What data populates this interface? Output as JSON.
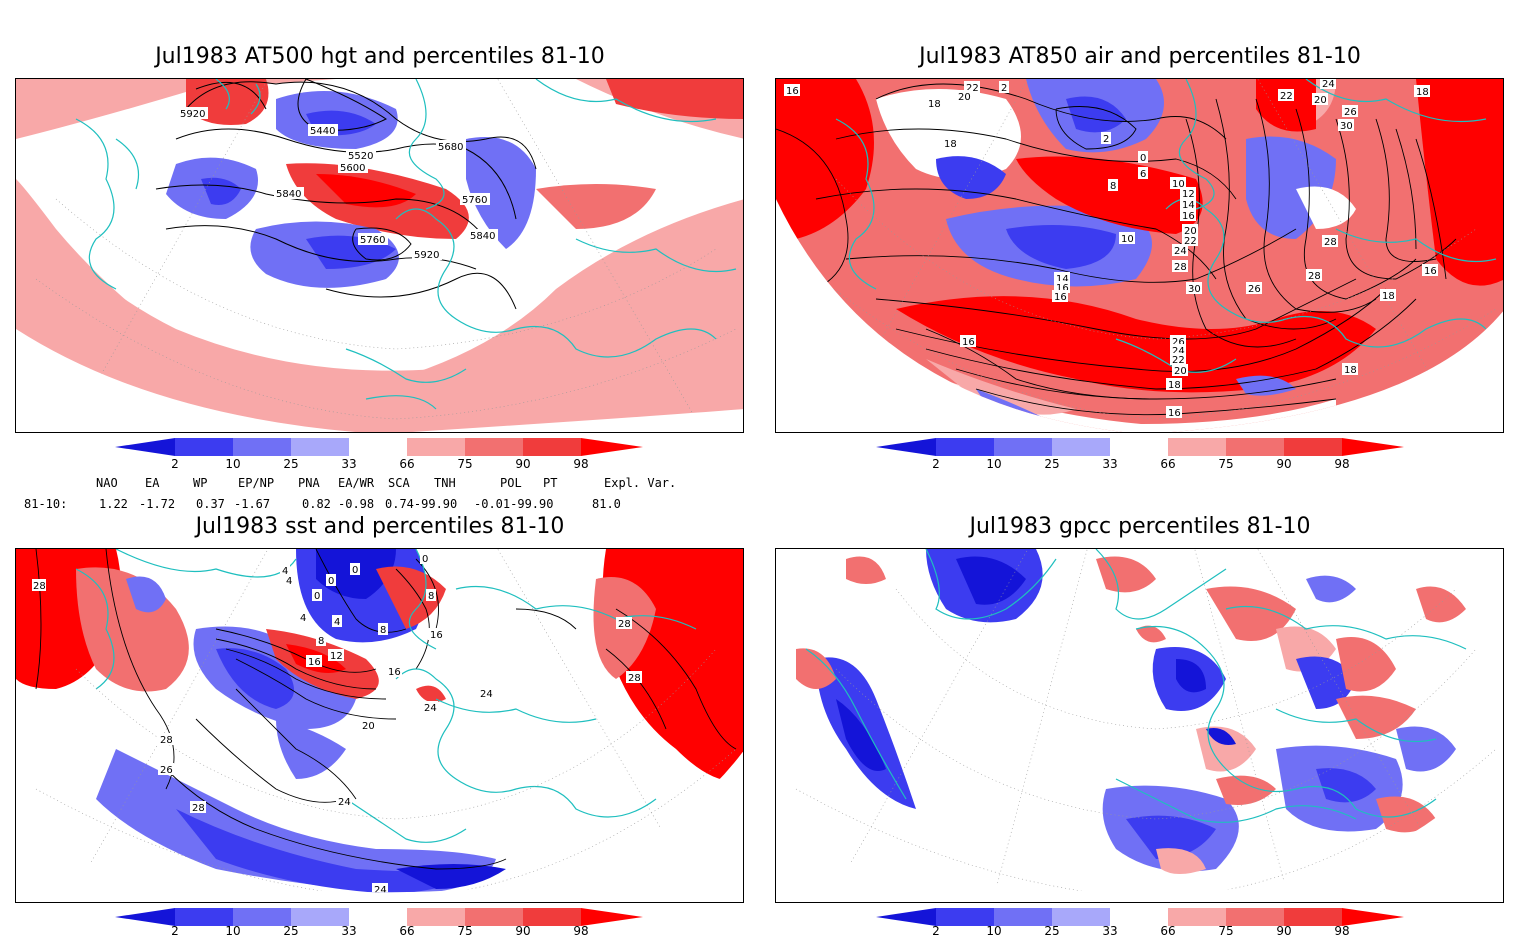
{
  "panels": [
    {
      "title": "Jul1983 AT500 hgt and percentiles 81-10",
      "contour_labels": [
        "5920",
        "5440",
        "5520",
        "5600",
        "5680",
        "5840",
        "5760",
        "5760",
        "5840",
        "5920"
      ]
    },
    {
      "title": "Jul1983 AT850 air and percentiles 81-10",
      "contour_labels": [
        "16",
        "22",
        "20",
        "18",
        "2",
        "18",
        "2",
        "0",
        "6",
        "8",
        "10",
        "12",
        "14",
        "16",
        "20",
        "22",
        "24",
        "10",
        "14",
        "16",
        "16",
        "28",
        "30",
        "26",
        "28",
        "26",
        "24",
        "22",
        "20",
        "18",
        "16",
        "16",
        "18",
        "24",
        "22",
        "26",
        "20",
        "30",
        "28",
        "18",
        "16",
        "18"
      ]
    },
    {
      "title": "Jul1983 sst and percentiles 81-10",
      "contour_labels": [
        "28",
        "4",
        "4",
        "0",
        "0",
        "0",
        "0",
        "4",
        "8",
        "4",
        "8",
        "8",
        "12",
        "16",
        "16",
        "16",
        "20",
        "24",
        "28",
        "26",
        "28",
        "24",
        "24",
        "28",
        "28",
        "24"
      ]
    },
    {
      "title": "Jul1983 gpcc percentiles 81-10",
      "contour_labels": []
    }
  ],
  "colorbar": {
    "ticks": [
      "2",
      "10",
      "25",
      "33",
      "66",
      "75",
      "90",
      "98"
    ],
    "colors": {
      "b1": "#1414d8",
      "b2": "#3c3cf0",
      "b3": "#7070f5",
      "b4": "#a8a8fa",
      "white": "#ffffff",
      "r1": "#f8a8a8",
      "r2": "#f27070",
      "r3": "#f03c3c",
      "r4": "#ff0000"
    }
  },
  "teleconnections": {
    "headers": [
      "NAO",
      "EA",
      "WP",
      "EP/NP",
      "PNA",
      "EA/WR",
      "SCA",
      "TNH",
      "POL",
      "PT",
      "Expl. Var."
    ],
    "row_label": "81-10:",
    "values": [
      "1.22",
      "-1.72",
      "0.37",
      "-1.67",
      "0.82",
      "-0.98",
      "0.74-99.90",
      "-0.01-99.90",
      "81.0"
    ]
  }
}
